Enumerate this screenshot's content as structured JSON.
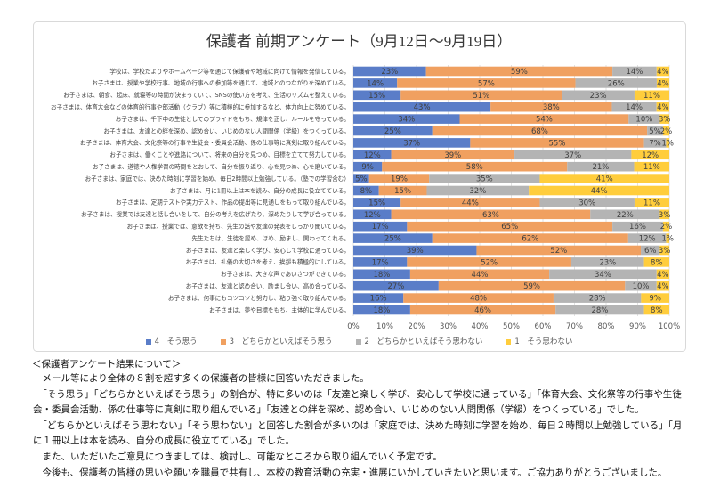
{
  "chart_data": {
    "type": "bar",
    "orientation": "horizontal",
    "stacking": "percent",
    "title": "保護者 前期アンケート（9月12日～9月19日）",
    "categories": [
      "学校は、学校だよりやホームページ等を通じて保護者や地域に向けて情報を発信している。",
      "お子さまは、授業や学校行事、地域の行事への参加等を通じて、地域とのつながりを深めている。",
      "お子さまは、朝食、起床、就寝等の時間が決まっていて、SNSの使い方を考え、生活のリズムを整えている。",
      "お子さまは、体育大会などの体育的行事や部活動（クラブ）等に積極的に参加するなど、体力向上に努めている。",
      "お子さまは、千下中の生徒としてのプライドをもち、規律を正し、ルールを守っている。",
      "お子さまは、友達との絆を深め、認め合い、いじめのない人間関係（学級）をつくっている。",
      "お子さまは、体育大会、文化祭等の行事や生徒会・委員会活動、係の仕事等に真剣に取り組んでいる。",
      "お子さまは、働くことや進路について、将来の自分を見つめ、目標を立てて努力している。",
      "お子さまは、道徳や人権学習の時間をとおして、自分を振り返り、心を見つめ、心を磨いている。",
      "お子さまは、家庭では、決めた時刻に学習を始め、毎日2時間以上勉強している。（塾での学習含む）",
      "お子さまは、月に1冊以上は本を読み、自分の成長に役立てている。",
      "お子さまは、定期テストや実力テスト、作品の提出等に見通しをもって取り組んでいる。",
      "お子さまは、授業では友達と話し合いをして、自分の考えを広げたり、深めたりして学び合っている。",
      "お子さまは、授業では、意欲を持ち、先生の話や友達の発表をしっかり聞いている。",
      "先生たちは、生徒を認め、ほめ、励まし、関わってくれる。",
      "お子さまは、友達と楽しく学び、安心して学校に通っている。",
      "お子さまは、礼儀の大切さを考え、挨拶も積極的にしている。",
      "お子さまは、大きな声であいさつができている。",
      "お子さまは、友達と認め合い、励まし合い、高め合っている。",
      "お子さまは、何事にもコツコツと努力し、粘り強く取り組んでいる。",
      "お子さまは、夢や目標をもち、主体的に学んでいる。"
    ],
    "series": [
      {
        "name": "4　そう思う",
        "color": "#5a7dc8",
        "values": [
          23,
          14,
          15,
          43,
          34,
          25,
          37,
          12,
          9,
          5,
          8,
          15,
          12,
          17,
          25,
          39,
          17,
          18,
          27,
          16,
          18
        ]
      },
      {
        "name": "3　どちらかといえばそう思う",
        "color": "#f0a060",
        "values": [
          59,
          57,
          51,
          38,
          54,
          68,
          55,
          39,
          58,
          19,
          15,
          44,
          63,
          65,
          62,
          52,
          52,
          44,
          59,
          48,
          46
        ]
      },
      {
        "name": "2　どちらかといえばそう思わない",
        "color": "#b4b4b4",
        "values": [
          14,
          26,
          23,
          14,
          10,
          5,
          7,
          37,
          21,
          35,
          32,
          30,
          22,
          16,
          12,
          6,
          23,
          34,
          10,
          28,
          28
        ]
      },
      {
        "name": "1　そう思わない",
        "color": "#ffcd3c",
        "values": [
          4,
          4,
          11,
          4,
          3,
          2,
          1,
          12,
          11,
          41,
          44,
          11,
          3,
          2,
          1,
          3,
          8,
          4,
          4,
          9,
          8
        ]
      }
    ],
    "unit": "%",
    "xlim": [
      0,
      100
    ],
    "xticks": [
      "0%",
      "10%",
      "20%",
      "30%",
      "40%",
      "50%",
      "60%",
      "70%",
      "80%",
      "90%",
      "100%"
    ],
    "grid": "vertical",
    "legend": "bottom"
  },
  "notes": {
    "heading": "＜保護者アンケート結果について＞",
    "lines": [
      "　メール等により全体の８割を超す多くの保護者の皆様に回答いただきました。",
      "　「そう思う」「どちらかといえばそう思う」の割合が、特に多いのは「友達と楽しく学び、安心して学校に通っている」「体育大会、文化祭等の行事や生徒",
      "会・委員会活動、係の仕事等に真剣に取り組んでいる」「友達との絆を深め、認め合い、いじめのない人間関係（学級）をつくっている」でした。",
      "　「どちらかといえばそう思わない」「そう思わない」と回答した割合が多いのは「家庭では、決めた時刻に学習を始め、毎日２時間以上勉強している」「月",
      "に１冊以上は本を読み、自分の成長に役立てている」でした。",
      "　また、いただいたご意見につきましては、検討し、可能なところから取り組んでいく予定です。",
      "　今後も、保護者の皆様の思いや願いを職員で共有し、本校の教育活動の充実・進展にいかしていきたいと思います。ご協力ありがとうございました。"
    ]
  }
}
